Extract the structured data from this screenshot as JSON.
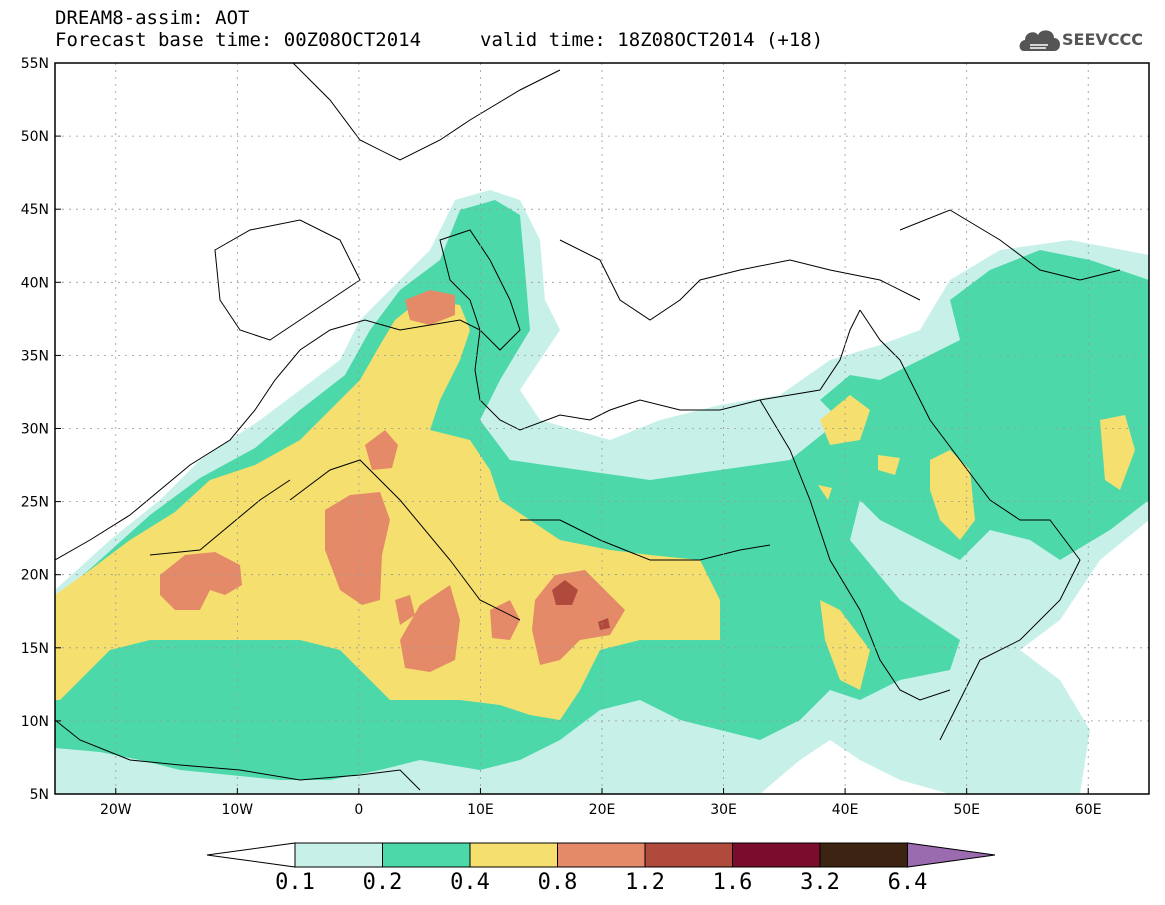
{
  "header": {
    "line1": "DREAM8-assim: AOT",
    "base_time": "Forecast base time: 00Z08OCT2014",
    "valid_time": "valid time: 18Z08OCT2014 (+18)"
  },
  "logo": {
    "text": "SEEVCCC",
    "icon": "cloud-icon"
  },
  "map": {
    "lon_range": [
      -25,
      65
    ],
    "lat_range": [
      5,
      55
    ],
    "lon_ticks": [
      "20W",
      "10W",
      "0",
      "10E",
      "20E",
      "30E",
      "40E",
      "50E",
      "60E"
    ],
    "lat_ticks": [
      "5N",
      "10N",
      "15N",
      "20N",
      "25N",
      "30N",
      "35N",
      "40N",
      "45N",
      "50N",
      "55N"
    ]
  },
  "colorbar": {
    "labels": [
      "0.1",
      "0.2",
      "0.4",
      "0.8",
      "1.2",
      "1.6",
      "3.2",
      "6.4"
    ],
    "colors": [
      "#ffffff",
      "#c7f1e8",
      "#4dd8aa",
      "#f5e06f",
      "#e58a68",
      "#b04a3c",
      "#7b0d2c",
      "#3d2412",
      "#9b6bb0"
    ]
  }
}
